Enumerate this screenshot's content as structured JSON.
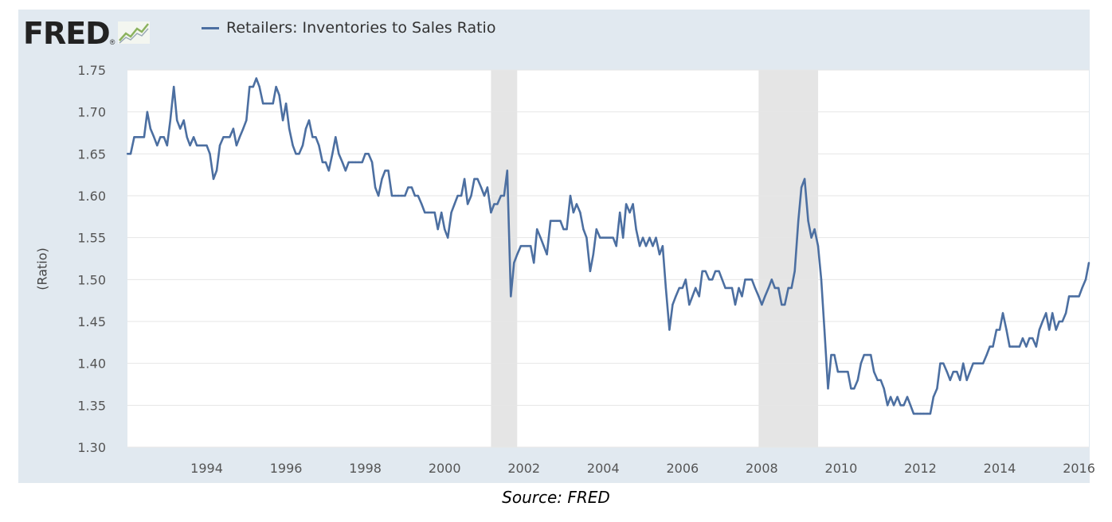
{
  "header": {
    "logo_text": "FRED",
    "logo_mark": "®",
    "logo_icon": "line-chart-icon"
  },
  "source_note": "Source: FRED",
  "colors": {
    "panel_bg": "#e1e9f0",
    "plot_bg": "#ffffff",
    "line": "#4c6fa1",
    "recession": "#e5e5e5",
    "gridline": "#e6e6e6",
    "logo_text": "#222222",
    "logo_icon_line": "#8bb25e"
  },
  "chart_data": {
    "type": "line",
    "title": "",
    "xlabel": "",
    "ylabel": "(Ratio)",
    "xlim": [
      1992.0,
      2016.25
    ],
    "ylim": [
      1.3,
      1.75
    ],
    "yticks": [
      1.3,
      1.35,
      1.4,
      1.45,
      1.5,
      1.55,
      1.6,
      1.65,
      1.7,
      1.75
    ],
    "ytick_labels": [
      "1.30",
      "1.35",
      "1.40",
      "1.45",
      "1.50",
      "1.55",
      "1.60",
      "1.65",
      "1.70",
      "1.75"
    ],
    "xticks": [
      1994,
      1996,
      1998,
      2000,
      2002,
      2004,
      2006,
      2008,
      2010,
      2012,
      2014,
      2016
    ],
    "xtick_labels": [
      "1994",
      "1996",
      "1998",
      "2000",
      "2002",
      "2004",
      "2006",
      "2008",
      "2010",
      "2012",
      "2014",
      "2016"
    ],
    "grid": "horizontal",
    "legend_position": "top",
    "recessions": [
      [
        2001.17,
        2001.83
      ],
      [
        2007.92,
        2009.42
      ]
    ],
    "series": [
      {
        "name": "Retailers: Inventories to Sales Ratio",
        "x": [
          1992.0,
          1992.08,
          1992.17,
          1992.25,
          1992.33,
          1992.42,
          1992.5,
          1992.58,
          1992.67,
          1992.75,
          1992.83,
          1992.92,
          1993.0,
          1993.08,
          1993.17,
          1993.25,
          1993.33,
          1993.42,
          1993.5,
          1993.58,
          1993.67,
          1993.75,
          1993.83,
          1993.92,
          1994.0,
          1994.08,
          1994.17,
          1994.25,
          1994.33,
          1994.42,
          1994.5,
          1994.58,
          1994.67,
          1994.75,
          1994.83,
          1994.92,
          1995.0,
          1995.08,
          1995.17,
          1995.25,
          1995.33,
          1995.42,
          1995.5,
          1995.58,
          1995.67,
          1995.75,
          1995.83,
          1995.92,
          1996.0,
          1996.08,
          1996.17,
          1996.25,
          1996.33,
          1996.42,
          1996.5,
          1996.58,
          1996.67,
          1996.75,
          1996.83,
          1996.92,
          1997.0,
          1997.08,
          1997.17,
          1997.25,
          1997.33,
          1997.42,
          1997.5,
          1997.58,
          1997.67,
          1997.75,
          1997.83,
          1997.92,
          1998.0,
          1998.08,
          1998.17,
          1998.25,
          1998.33,
          1998.42,
          1998.5,
          1998.58,
          1998.67,
          1998.75,
          1998.83,
          1998.92,
          1999.0,
          1999.08,
          1999.17,
          1999.25,
          1999.33,
          1999.42,
          1999.5,
          1999.58,
          1999.67,
          1999.75,
          1999.83,
          1999.92,
          2000.0,
          2000.08,
          2000.17,
          2000.25,
          2000.33,
          2000.42,
          2000.5,
          2000.58,
          2000.67,
          2000.75,
          2000.83,
          2000.92,
          2001.0,
          2001.08,
          2001.17,
          2001.25,
          2001.33,
          2001.42,
          2001.5,
          2001.58,
          2001.67,
          2001.75,
          2001.83,
          2001.92,
          2002.0,
          2002.08,
          2002.17,
          2002.25,
          2002.33,
          2002.42,
          2002.5,
          2002.58,
          2002.67,
          2002.75,
          2002.83,
          2002.92,
          2003.0,
          2003.08,
          2003.17,
          2003.25,
          2003.33,
          2003.42,
          2003.5,
          2003.58,
          2003.67,
          2003.75,
          2003.83,
          2003.92,
          2004.0,
          2004.08,
          2004.17,
          2004.25,
          2004.33,
          2004.42,
          2004.5,
          2004.58,
          2004.67,
          2004.75,
          2004.83,
          2004.92,
          2005.0,
          2005.08,
          2005.17,
          2005.25,
          2005.33,
          2005.42,
          2005.5,
          2005.58,
          2005.67,
          2005.75,
          2005.83,
          2005.92,
          2006.0,
          2006.08,
          2006.17,
          2006.25,
          2006.33,
          2006.42,
          2006.5,
          2006.58,
          2006.67,
          2006.75,
          2006.83,
          2006.92,
          2007.0,
          2007.08,
          2007.17,
          2007.25,
          2007.33,
          2007.42,
          2007.5,
          2007.58,
          2007.67,
          2007.75,
          2007.83,
          2007.92,
          2008.0,
          2008.08,
          2008.17,
          2008.25,
          2008.33,
          2008.42,
          2008.5,
          2008.58,
          2008.67,
          2008.75,
          2008.83,
          2008.92,
          2009.0,
          2009.08,
          2009.17,
          2009.25,
          2009.33,
          2009.42,
          2009.5,
          2009.58,
          2009.67,
          2009.75,
          2009.83,
          2009.92,
          2010.0,
          2010.08,
          2010.17,
          2010.25,
          2010.33,
          2010.42,
          2010.5,
          2010.58,
          2010.67,
          2010.75,
          2010.83,
          2010.92,
          2011.0,
          2011.08,
          2011.17,
          2011.25,
          2011.33,
          2011.42,
          2011.5,
          2011.58,
          2011.67,
          2011.75,
          2011.83,
          2011.92,
          2012.0,
          2012.08,
          2012.17,
          2012.25,
          2012.33,
          2012.42,
          2012.5,
          2012.58,
          2012.67,
          2012.75,
          2012.83,
          2012.92,
          2013.0,
          2013.08,
          2013.17,
          2013.25,
          2013.33,
          2013.42,
          2013.5,
          2013.58,
          2013.67,
          2013.75,
          2013.83,
          2013.92,
          2014.0,
          2014.08,
          2014.17,
          2014.25,
          2014.33,
          2014.42,
          2014.5,
          2014.58,
          2014.67,
          2014.75,
          2014.83,
          2014.92,
          2015.0,
          2015.08,
          2015.17,
          2015.25,
          2015.33,
          2015.42,
          2015.5,
          2015.58,
          2015.67,
          2015.75,
          2015.83,
          2015.92,
          2016.0,
          2016.08,
          2016.17,
          2016.25
        ],
        "values": [
          1.65,
          1.65,
          1.67,
          1.67,
          1.67,
          1.67,
          1.7,
          1.68,
          1.67,
          1.66,
          1.67,
          1.67,
          1.66,
          1.69,
          1.73,
          1.69,
          1.68,
          1.69,
          1.67,
          1.66,
          1.67,
          1.66,
          1.66,
          1.66,
          1.66,
          1.65,
          1.62,
          1.63,
          1.66,
          1.67,
          1.67,
          1.67,
          1.68,
          1.66,
          1.67,
          1.68,
          1.69,
          1.73,
          1.73,
          1.74,
          1.73,
          1.71,
          1.71,
          1.71,
          1.71,
          1.73,
          1.72,
          1.69,
          1.71,
          1.68,
          1.66,
          1.65,
          1.65,
          1.66,
          1.68,
          1.69,
          1.67,
          1.67,
          1.66,
          1.64,
          1.64,
          1.63,
          1.65,
          1.67,
          1.65,
          1.64,
          1.63,
          1.64,
          1.64,
          1.64,
          1.64,
          1.64,
          1.65,
          1.65,
          1.64,
          1.61,
          1.6,
          1.62,
          1.63,
          1.63,
          1.6,
          1.6,
          1.6,
          1.6,
          1.6,
          1.61,
          1.61,
          1.6,
          1.6,
          1.59,
          1.58,
          1.58,
          1.58,
          1.58,
          1.56,
          1.58,
          1.56,
          1.55,
          1.58,
          1.59,
          1.6,
          1.6,
          1.62,
          1.59,
          1.6,
          1.62,
          1.62,
          1.61,
          1.6,
          1.61,
          1.58,
          1.59,
          1.59,
          1.6,
          1.6,
          1.63,
          1.48,
          1.52,
          1.53,
          1.54,
          1.54,
          1.54,
          1.54,
          1.52,
          1.56,
          1.55,
          1.54,
          1.53,
          1.57,
          1.57,
          1.57,
          1.57,
          1.56,
          1.56,
          1.6,
          1.58,
          1.59,
          1.58,
          1.56,
          1.55,
          1.51,
          1.53,
          1.56,
          1.55,
          1.55,
          1.55,
          1.55,
          1.55,
          1.54,
          1.58,
          1.55,
          1.59,
          1.58,
          1.59,
          1.56,
          1.54,
          1.55,
          1.54,
          1.55,
          1.54,
          1.55,
          1.53,
          1.54,
          1.49,
          1.44,
          1.47,
          1.48,
          1.49,
          1.49,
          1.5,
          1.47,
          1.48,
          1.49,
          1.48,
          1.51,
          1.51,
          1.5,
          1.5,
          1.51,
          1.51,
          1.5,
          1.49,
          1.49,
          1.49,
          1.47,
          1.49,
          1.48,
          1.5,
          1.5,
          1.5,
          1.49,
          1.48,
          1.47,
          1.48,
          1.49,
          1.5,
          1.49,
          1.49,
          1.47,
          1.47,
          1.49,
          1.49,
          1.51,
          1.57,
          1.61,
          1.62,
          1.57,
          1.55,
          1.56,
          1.54,
          1.5,
          1.44,
          1.37,
          1.41,
          1.41,
          1.39,
          1.39,
          1.39,
          1.39,
          1.37,
          1.37,
          1.38,
          1.4,
          1.41,
          1.41,
          1.41,
          1.39,
          1.38,
          1.38,
          1.37,
          1.35,
          1.36,
          1.35,
          1.36,
          1.35,
          1.35,
          1.36,
          1.35,
          1.34,
          1.34,
          1.34,
          1.34,
          1.34,
          1.34,
          1.36,
          1.37,
          1.4,
          1.4,
          1.39,
          1.38,
          1.39,
          1.39,
          1.38,
          1.4,
          1.38,
          1.39,
          1.4,
          1.4,
          1.4,
          1.4,
          1.41,
          1.42,
          1.42,
          1.44,
          1.44,
          1.46,
          1.44,
          1.42,
          1.42,
          1.42,
          1.42,
          1.43,
          1.42,
          1.43,
          1.43,
          1.42,
          1.44,
          1.45,
          1.46,
          1.44,
          1.46,
          1.44,
          1.45,
          1.45,
          1.46,
          1.48,
          1.48,
          1.48,
          1.48,
          1.49,
          1.5,
          1.52
        ]
      }
    ]
  }
}
